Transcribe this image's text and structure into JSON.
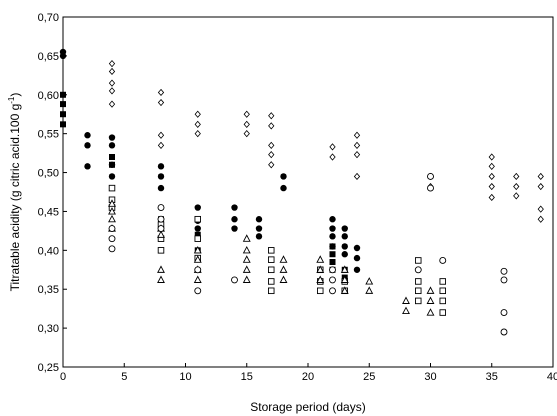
{
  "chart_data": {
    "type": "scatter",
    "xlabel": "Storage period (days)",
    "ylabel_main": "Titratable acidity (g citric acid.100 g",
    "ylabel_sup": "-1",
    "ylabel_close": ")",
    "xlim": [
      0,
      40
    ],
    "ylim": [
      0.25,
      0.7
    ],
    "xticks": [
      0,
      5,
      10,
      15,
      20,
      25,
      30,
      35,
      40
    ],
    "yticks": [
      0.25,
      0.3,
      0.35,
      0.4,
      0.45,
      0.5,
      0.55,
      0.6,
      0.65,
      0.7
    ],
    "xtick_labels": [
      "0",
      "5",
      "10",
      "15",
      "20",
      "25",
      "30",
      "35",
      "40"
    ],
    "ytick_labels": [
      "0,25",
      "0,30",
      "0,35",
      "0,40",
      "0,45",
      "0,50",
      "0,55",
      "0,60",
      "0,65",
      "0,70"
    ],
    "grid": false,
    "series": [
      {
        "marker": "filled-square",
        "points": [
          [
            0,
            0.6
          ],
          [
            0,
            0.588
          ],
          [
            0,
            0.575
          ],
          [
            0,
            0.562
          ],
          [
            4,
            0.52
          ],
          [
            4,
            0.51
          ],
          [
            8,
            0.44
          ],
          [
            11,
            0.42
          ],
          [
            11,
            0.4
          ],
          [
            22,
            0.405
          ],
          [
            22,
            0.395
          ],
          [
            22,
            0.385
          ],
          [
            22,
            0.375
          ],
          [
            23,
            0.375
          ],
          [
            23,
            0.365
          ]
        ]
      },
      {
        "marker": "filled-circle",
        "points": [
          [
            0,
            0.655
          ],
          [
            0,
            0.65
          ],
          [
            2,
            0.548
          ],
          [
            2,
            0.535
          ],
          [
            2,
            0.508
          ],
          [
            4,
            0.545
          ],
          [
            4,
            0.535
          ],
          [
            4,
            0.51
          ],
          [
            4,
            0.495
          ],
          [
            8,
            0.508
          ],
          [
            8,
            0.495
          ],
          [
            8,
            0.48
          ],
          [
            8,
            0.44
          ],
          [
            11,
            0.455
          ],
          [
            11,
            0.44
          ],
          [
            11,
            0.438
          ],
          [
            11,
            0.428
          ],
          [
            14,
            0.455
          ],
          [
            14,
            0.44
          ],
          [
            14,
            0.428
          ],
          [
            16,
            0.44
          ],
          [
            16,
            0.428
          ],
          [
            16,
            0.418
          ],
          [
            18,
            0.495
          ],
          [
            18,
            0.48
          ],
          [
            22,
            0.44
          ],
          [
            22,
            0.428
          ],
          [
            22,
            0.418
          ],
          [
            22,
            0.405
          ],
          [
            23,
            0.428
          ],
          [
            23,
            0.418
          ],
          [
            23,
            0.405
          ],
          [
            23,
            0.395
          ],
          [
            24,
            0.403
          ],
          [
            24,
            0.39
          ],
          [
            24,
            0.375
          ]
        ]
      },
      {
        "marker": "open-diamond",
        "points": [
          [
            4,
            0.64
          ],
          [
            4,
            0.63
          ],
          [
            4,
            0.615
          ],
          [
            4,
            0.605
          ],
          [
            4,
            0.588
          ],
          [
            8,
            0.603
          ],
          [
            8,
            0.59
          ],
          [
            8,
            0.548
          ],
          [
            8,
            0.535
          ],
          [
            11,
            0.575
          ],
          [
            11,
            0.562
          ],
          [
            11,
            0.55
          ],
          [
            15,
            0.575
          ],
          [
            15,
            0.562
          ],
          [
            15,
            0.55
          ],
          [
            17,
            0.573
          ],
          [
            17,
            0.56
          ],
          [
            17,
            0.535
          ],
          [
            17,
            0.523
          ],
          [
            17,
            0.51
          ],
          [
            22,
            0.533
          ],
          [
            22,
            0.52
          ],
          [
            24,
            0.548
          ],
          [
            24,
            0.535
          ],
          [
            24,
            0.523
          ],
          [
            24,
            0.495
          ],
          [
            30,
            0.495
          ],
          [
            30,
            0.482
          ],
          [
            35,
            0.52
          ],
          [
            35,
            0.508
          ],
          [
            35,
            0.495
          ],
          [
            35,
            0.482
          ],
          [
            35,
            0.468
          ],
          [
            37,
            0.495
          ],
          [
            37,
            0.482
          ],
          [
            37,
            0.47
          ],
          [
            39,
            0.495
          ],
          [
            39,
            0.482
          ],
          [
            39,
            0.453
          ],
          [
            39,
            0.44
          ]
        ]
      },
      {
        "marker": "open-square",
        "points": [
          [
            4,
            0.48
          ],
          [
            4,
            0.465
          ],
          [
            4,
            0.455
          ],
          [
            8,
            0.433
          ],
          [
            8,
            0.415
          ],
          [
            8,
            0.4
          ],
          [
            11,
            0.44
          ],
          [
            11,
            0.415
          ],
          [
            11,
            0.39
          ],
          [
            17,
            0.4
          ],
          [
            17,
            0.388
          ],
          [
            17,
            0.375
          ],
          [
            17,
            0.36
          ],
          [
            17,
            0.348
          ],
          [
            21,
            0.375
          ],
          [
            21,
            0.36
          ],
          [
            21,
            0.348
          ],
          [
            23,
            0.36
          ],
          [
            23,
            0.348
          ],
          [
            29,
            0.387
          ],
          [
            29,
            0.36
          ],
          [
            29,
            0.348
          ],
          [
            29,
            0.335
          ],
          [
            31,
            0.36
          ],
          [
            31,
            0.348
          ],
          [
            31,
            0.335
          ],
          [
            31,
            0.32
          ]
        ]
      },
      {
        "marker": "open-triangle",
        "points": [
          [
            4,
            0.46
          ],
          [
            4,
            0.45
          ],
          [
            4,
            0.44
          ],
          [
            4,
            0.428
          ],
          [
            8,
            0.428
          ],
          [
            8,
            0.42
          ],
          [
            8,
            0.375
          ],
          [
            8,
            0.362
          ],
          [
            11,
            0.4
          ],
          [
            11,
            0.388
          ],
          [
            11,
            0.375
          ],
          [
            11,
            0.362
          ],
          [
            15,
            0.415
          ],
          [
            15,
            0.4
          ],
          [
            15,
            0.388
          ],
          [
            15,
            0.375
          ],
          [
            15,
            0.362
          ],
          [
            18,
            0.388
          ],
          [
            18,
            0.375
          ],
          [
            18,
            0.362
          ],
          [
            21,
            0.388
          ],
          [
            21,
            0.375
          ],
          [
            21,
            0.362
          ],
          [
            23,
            0.375
          ],
          [
            23,
            0.362
          ],
          [
            23,
            0.348
          ],
          [
            25,
            0.36
          ],
          [
            25,
            0.348
          ],
          [
            28,
            0.335
          ],
          [
            28,
            0.322
          ],
          [
            30,
            0.348
          ],
          [
            30,
            0.335
          ],
          [
            30,
            0.32
          ]
        ]
      },
      {
        "marker": "open-circle",
        "points": [
          [
            4,
            0.428
          ],
          [
            4,
            0.415
          ],
          [
            4,
            0.402
          ],
          [
            8,
            0.455
          ],
          [
            8,
            0.44
          ],
          [
            8,
            0.428
          ],
          [
            11,
            0.375
          ],
          [
            11,
            0.348
          ],
          [
            14,
            0.362
          ],
          [
            22,
            0.375
          ],
          [
            22,
            0.362
          ],
          [
            22,
            0.348
          ],
          [
            29,
            0.375
          ],
          [
            30,
            0.495
          ],
          [
            30,
            0.48
          ],
          [
            31,
            0.387
          ],
          [
            36,
            0.373
          ],
          [
            36,
            0.362
          ],
          [
            36,
            0.32
          ],
          [
            36,
            0.295
          ]
        ]
      }
    ]
  }
}
